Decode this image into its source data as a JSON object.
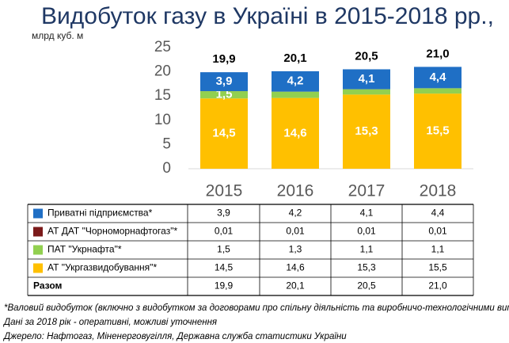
{
  "chart_data": {
    "type": "stacked-bar",
    "title": "Видобуток газу в Україні в 2015-2018 рр.,",
    "subtitle": "млрд куб. м",
    "categories": [
      "2015",
      "2016",
      "2017",
      "2018"
    ],
    "ylim": [
      0,
      25
    ],
    "yticks": [
      0,
      5,
      10,
      15,
      20,
      25
    ],
    "grid": false,
    "series": [
      {
        "name": "Приватні підприємства*",
        "color": "#1f6fc5",
        "values": [
          3.9,
          4.2,
          4.1,
          4.4
        ],
        "value_labels": [
          "3,9",
          "4,2",
          "4,1",
          "4,4"
        ]
      },
      {
        "name": "АТ ДАТ \"Чорноморнафтогаз\"*",
        "color": "#7b1a1a",
        "values": [
          0.01,
          0.01,
          0.01,
          0.01
        ],
        "value_labels": [
          "0,01",
          "0,01",
          "0,01",
          "0,01"
        ]
      },
      {
        "name": "ПАТ \"Укрнафта\"*",
        "color": "#92d050",
        "values": [
          1.5,
          1.3,
          1.1,
          1.1
        ],
        "value_labels": [
          "1,5",
          "1,3",
          "1,1",
          "1,1"
        ]
      },
      {
        "name": "АТ \"Укргазвидобування\"*",
        "color": "#ffc000",
        "values": [
          14.5,
          14.6,
          15.3,
          15.5
        ],
        "value_labels": [
          "14,5",
          "14,6",
          "15,3",
          "15,5"
        ]
      }
    ],
    "totals": {
      "name": "Разом",
      "values": [
        19.9,
        20.1,
        20.5,
        21.0
      ],
      "value_labels": [
        "19,9",
        "20,1",
        "20,5",
        "21,0"
      ]
    },
    "notes": [
      "*Валовий видобуток (включно з видобутком за договорами про спільну діяльність та виробничо-технологічними витратами)",
      "Дані за 2018 рік - оперативні, можливі уточнення",
      "Джерело: Нафтогаз, Міненерговугілля, Державна служба статистики України"
    ]
  }
}
